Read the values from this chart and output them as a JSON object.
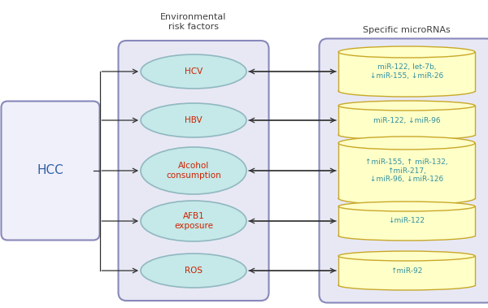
{
  "hcc_label": "HCC",
  "env_title": "Environmental\nrisk factors",
  "mirna_title": "Specific microRNAs",
  "env_factors_ordered": [
    "HCV",
    "HBV",
    "Alcohol\nconsumption",
    "AFB1\nexposure",
    "ROS"
  ],
  "mirna_labels": [
    "miR-122, let-7b,\n↓miR-155, ↓miR-26",
    "miR-122, ↓miR-96",
    "↑miR-155, ↑ miR-132,\n↑miR-217,\n↓miR-96, ↓miR-126",
    "↓miR-122",
    "↑miR-92"
  ],
  "hcc_box_facecolor": "#f0f0fa",
  "hcc_border_color": "#8888bb",
  "env_box_facecolor": "#e8e8f5",
  "env_border_color": "#8888bb",
  "mirna_box_facecolor": "#e8e8f5",
  "mirna_border_color": "#8888bb",
  "ellipse_face_color": "#c5e8e8",
  "ellipse_edge_color": "#90b8c0",
  "cylinder_face_color": "#ffffc8",
  "cylinder_edge_color": "#c8a828",
  "env_text_color": "#cc2200",
  "mirna_text_color": "#3090a0",
  "hcc_text_color": "#3060a8",
  "title_text_color": "#404040",
  "arrow_color": "#303030",
  "fig_width": 6.0,
  "fig_height": 3.79,
  "dpi": 100
}
